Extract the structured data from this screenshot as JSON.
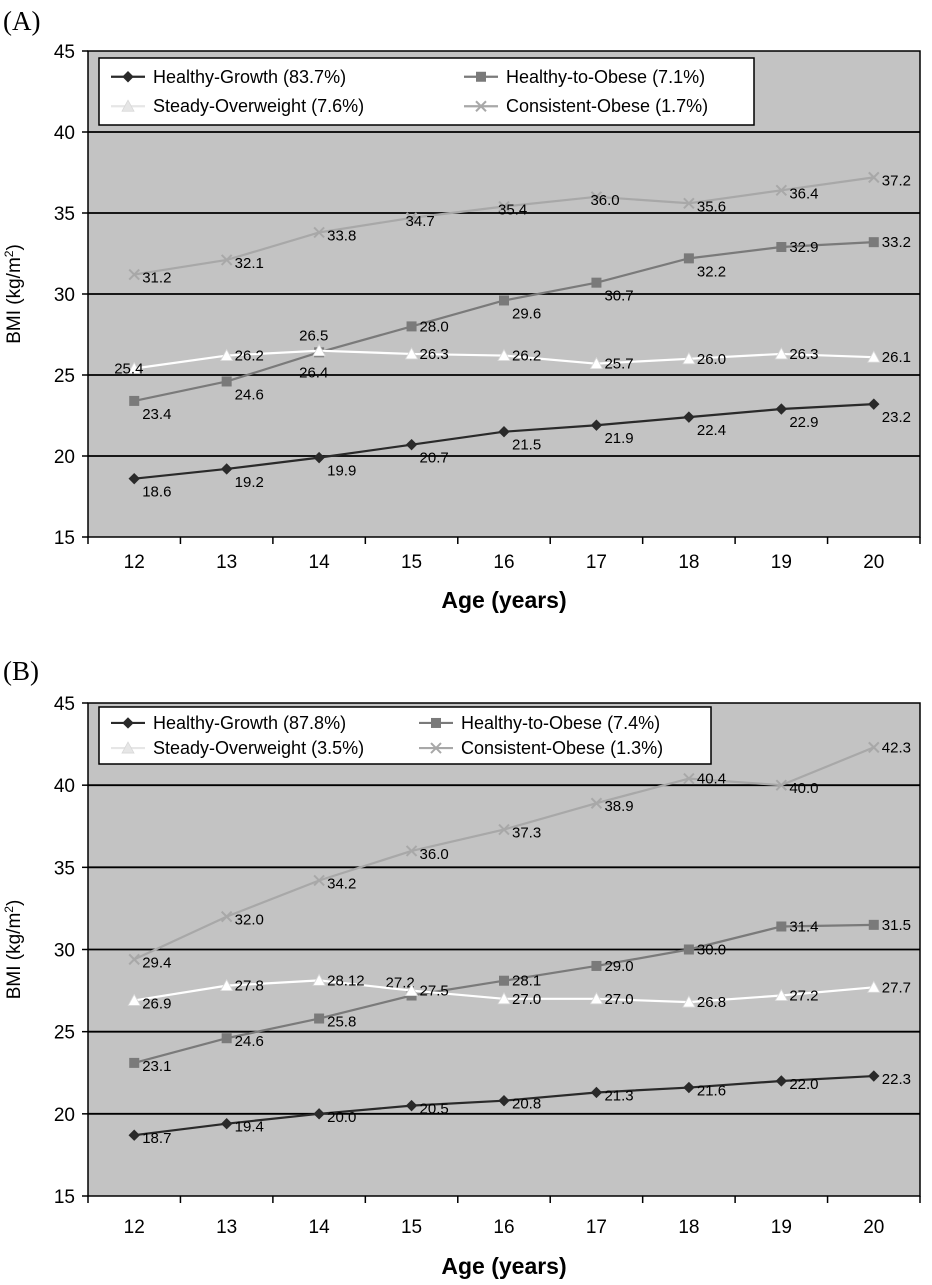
{
  "chart_data": [
    {
      "type": "line",
      "panel_label": "(A)",
      "xlabel": "Age (years)",
      "ylabel": {
        "main": "BMI (kg/m",
        "sup": "2",
        "close": ")"
      },
      "ylim": [
        15,
        45
      ],
      "yticks": [
        15,
        20,
        25,
        30,
        35,
        40,
        45
      ],
      "categories": [
        "12",
        "13",
        "14",
        "15",
        "16",
        "17",
        "18",
        "19",
        "20"
      ],
      "grid": "horizontal",
      "legend_position": "top-left",
      "series": [
        {
          "name": "Healthy-Growth (83.7%)",
          "marker": "diamond",
          "color": "#2a2a2a",
          "values": [
            18.6,
            19.2,
            19.9,
            20.7,
            21.5,
            21.9,
            22.4,
            22.9,
            23.2
          ],
          "labels": [
            "18.6",
            "19.2",
            "19.9",
            "20.7",
            "21.5",
            "21.9",
            "22.4",
            "22.9",
            "23.2"
          ]
        },
        {
          "name": "Healthy-to-Obese (7.1%)",
          "marker": "square",
          "color": "#7a7a7a",
          "values": [
            23.4,
            24.6,
            26.4,
            28.0,
            29.6,
            30.7,
            32.2,
            32.9,
            33.2
          ],
          "labels": [
            "23.4",
            "24.6",
            "26.4",
            "28.0",
            "29.6",
            "30.7",
            "32.2",
            "32.9",
            "33.2"
          ]
        },
        {
          "name": "Steady-Overweight (7.6%)",
          "marker": "triangle",
          "color": "#ffffff",
          "values": [
            25.4,
            26.2,
            26.5,
            26.3,
            26.2,
            25.7,
            26.0,
            26.3,
            26.1
          ],
          "labels": [
            "25.4",
            "26.2",
            "26.5",
            "26.3",
            "26.2",
            "25.7",
            "26.0",
            "26.3",
            "26.1"
          ]
        },
        {
          "name": "Consistent-Obese (1.7%)",
          "marker": "x",
          "color": "#a8a8a8",
          "values": [
            31.2,
            32.1,
            33.8,
            34.7,
            35.4,
            36.0,
            35.6,
            36.4,
            37.2
          ],
          "labels": [
            "31.2",
            "32.1",
            "33.8",
            "34.7",
            "35.4",
            "36.0",
            "35.6",
            "36.4",
            "37.2"
          ]
        }
      ]
    },
    {
      "type": "line",
      "panel_label": "(B)",
      "xlabel": "Age (years)",
      "ylabel": {
        "main": "BMI (kg/m",
        "sup": "2",
        "close": ")"
      },
      "ylim": [
        15,
        45
      ],
      "yticks": [
        15,
        20,
        25,
        30,
        35,
        40,
        45
      ],
      "categories": [
        "12",
        "13",
        "14",
        "15",
        "16",
        "17",
        "18",
        "19",
        "20"
      ],
      "grid": "horizontal",
      "legend_position": "top-left",
      "series": [
        {
          "name": "Healthy-Growth (87.8%)",
          "marker": "diamond",
          "color": "#2a2a2a",
          "values": [
            18.7,
            19.4,
            20.0,
            20.5,
            20.8,
            21.3,
            21.6,
            22.0,
            22.3
          ],
          "labels": [
            "18.7",
            "19.4",
            "20.0",
            "20.5",
            "20.8",
            "21.3",
            "21.6",
            "22.0",
            "22.3"
          ]
        },
        {
          "name": "Healthy-to-Obese (7.4%)",
          "marker": "square",
          "color": "#7a7a7a",
          "values": [
            23.1,
            24.6,
            25.8,
            27.2,
            28.1,
            29.0,
            30.0,
            31.4,
            31.5
          ],
          "labels": [
            "23.1",
            "24.6",
            "25.8",
            "27.2",
            "28.1",
            "29.0",
            "30.0",
            "31.4",
            "31.5"
          ]
        },
        {
          "name": "Steady-Overweight (3.5%)",
          "marker": "triangle",
          "color": "#ffffff",
          "values": [
            26.9,
            27.8,
            28.12,
            27.5,
            27.0,
            27.0,
            26.8,
            27.2,
            27.7
          ],
          "labels": [
            "26.9",
            "27.8",
            "28.12",
            "27.5",
            "27.0",
            "27.0",
            "26.8",
            "27.2",
            "27.7"
          ]
        },
        {
          "name": "Consistent-Obese (1.3%)",
          "marker": "x",
          "color": "#a8a8a8",
          "values": [
            29.4,
            32.0,
            34.2,
            36.0,
            37.3,
            38.9,
            40.4,
            40.0,
            42.3
          ],
          "labels": [
            "29.4",
            "32.0",
            "34.2",
            "36.0",
            "37.3",
            "38.9",
            "40.4",
            "40.0",
            "42.3"
          ]
        }
      ]
    }
  ],
  "colors": {
    "plot_background": "#c3c3c3",
    "gridline": "#000000",
    "healthy_growth": "#2a2a2a",
    "healthy_to_obese": "#7a7a7a",
    "steady_overweight": "#ffffff",
    "consistent_obese": "#a8a8a8"
  }
}
